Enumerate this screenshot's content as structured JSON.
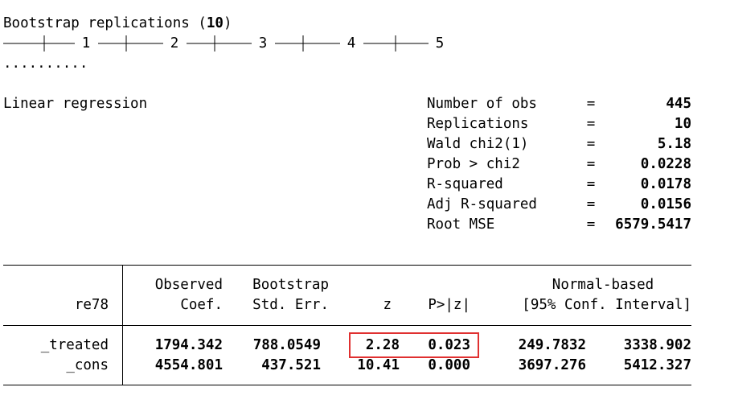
{
  "header": {
    "title_prefix": "Bootstrap replications (",
    "replications": "10",
    "title_suffix": ")",
    "ruler": [
      "1",
      "2",
      "3",
      "4",
      "5"
    ],
    "dots": ".........."
  },
  "model": "Linear regression",
  "separator": "=",
  "stats": [
    {
      "label": "Number of obs",
      "value": "445"
    },
    {
      "label": "Replications",
      "value": "10"
    },
    {
      "label": "Wald chi2(1)",
      "value": "5.18"
    },
    {
      "label": "Prob > chi2",
      "value": "0.0228"
    },
    {
      "label": "R-squared",
      "value": "0.0178"
    },
    {
      "label": "Adj R-squared",
      "value": "0.0156"
    },
    {
      "label": "Root MSE",
      "value": "6579.5417"
    }
  ],
  "table": {
    "depvar": "re78",
    "headers_top": [
      "Observed",
      "Bootstrap",
      "Normal-based"
    ],
    "headers": [
      "Coef.",
      "Std. Err.",
      "z",
      "P>|z|",
      "[95% Conf. Interval]"
    ],
    "rows": [
      [
        "_treated",
        "1794.342",
        "788.0549",
        "2.28",
        "0.023",
        "249.7832",
        "3338.902"
      ],
      [
        "_cons",
        "4554.801",
        "437.521",
        "10.41",
        "0.000",
        "3697.276",
        "5412.327"
      ]
    ]
  }
}
